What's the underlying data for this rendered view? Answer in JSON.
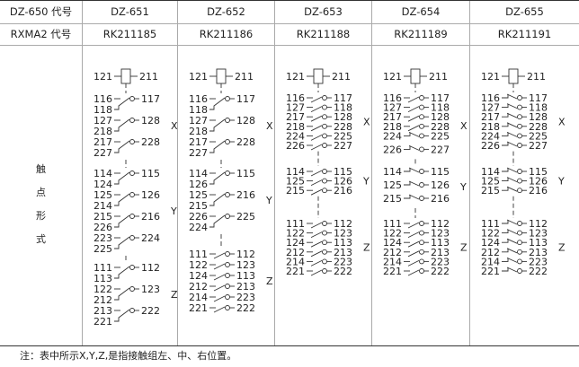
{
  "header": {
    "row1_label": "DZ-650 代号",
    "row2_label": "RXMA2 代号",
    "contact_form_label": [
      "触",
      "点",
      "形",
      "式"
    ]
  },
  "columns": [
    {
      "model": "DZ-651",
      "code": "RK211185",
      "coil": {
        "left": "121",
        "right": "211"
      },
      "groups": [
        {
          "label": "X",
          "contacts": [
            {
              "type": "changeover",
              "left": "116",
              "right": "117",
              "left2": "118"
            },
            {
              "type": "changeover",
              "left": "127",
              "right": "128",
              "left2": "218"
            },
            {
              "type": "changeover",
              "left": "217",
              "right": "228",
              "left2": "227"
            }
          ]
        },
        {
          "label": "Y",
          "contacts": [
            {
              "type": "changeover",
              "left": "114",
              "right": "115",
              "left2": "124"
            },
            {
              "type": "changeover",
              "left": "125",
              "right": "126",
              "left2": "214"
            },
            {
              "type": "changeover",
              "left": "215",
              "right": "216",
              "left2": "226"
            },
            {
              "type": "changeover",
              "left": "223",
              "right": "224",
              "left2": "225"
            }
          ]
        },
        {
          "label": "Z",
          "contacts": [
            {
              "type": "changeover",
              "left": "111",
              "right": "112",
              "left2": "113"
            },
            {
              "type": "changeover",
              "left": "122",
              "right": "123",
              "left2": "212"
            },
            {
              "type": "changeover",
              "left": "213",
              "right": "222",
              "left2": "221"
            }
          ]
        }
      ]
    },
    {
      "model": "DZ-652",
      "code": "RK211186",
      "coil": {
        "left": "121",
        "right": "211"
      },
      "groups": [
        {
          "label": "X",
          "contacts": [
            {
              "type": "changeover",
              "left": "116",
              "right": "117",
              "left2": "118"
            },
            {
              "type": "changeover",
              "left": "127",
              "right": "128",
              "left2": "218"
            },
            {
              "type": "changeover",
              "left": "217",
              "right": "228",
              "left2": "227"
            }
          ]
        },
        {
          "label": "Y",
          "contacts": [
            {
              "type": "changeover",
              "left": "114",
              "right": "115",
              "left2": "126"
            },
            {
              "type": "changeover",
              "left": "125",
              "right": "216",
              "left2": "215"
            },
            {
              "type": "changeover",
              "left": "226",
              "right": "225",
              "left2": "224"
            }
          ]
        },
        {
          "label": "Z",
          "contacts": [
            {
              "type": "make",
              "left": "111",
              "right": "112"
            },
            {
              "type": "make",
              "left": "122",
              "right": "123"
            },
            {
              "type": "make",
              "left": "124",
              "right": "113"
            },
            {
              "type": "make",
              "left": "212",
              "right": "213"
            },
            {
              "type": "make",
              "left": "214",
              "right": "223"
            },
            {
              "type": "make",
              "left": "221",
              "right": "222"
            }
          ]
        }
      ]
    },
    {
      "model": "DZ-653",
      "code": "RK211188",
      "coil": {
        "left": "121",
        "right": "211"
      },
      "groups": [
        {
          "label": "X",
          "contacts": [
            {
              "type": "make",
              "left": "116",
              "right": "117"
            },
            {
              "type": "make",
              "left": "127",
              "right": "118"
            },
            {
              "type": "make",
              "left": "217",
              "right": "128"
            },
            {
              "type": "make",
              "left": "218",
              "right": "228"
            },
            {
              "type": "make",
              "left": "224",
              "right": "225"
            },
            {
              "type": "make",
              "left": "226",
              "right": "227"
            }
          ]
        },
        {
          "label": "Y",
          "contacts": [
            {
              "type": "make",
              "left": "114",
              "right": "115"
            },
            {
              "type": "make",
              "left": "125",
              "right": "126"
            },
            {
              "type": "make",
              "left": "215",
              "right": "216"
            }
          ]
        },
        {
          "label": "Z",
          "contacts": [
            {
              "type": "make",
              "left": "111",
              "right": "112"
            },
            {
              "type": "make",
              "left": "122",
              "right": "123"
            },
            {
              "type": "make",
              "left": "124",
              "right": "113"
            },
            {
              "type": "make",
              "left": "212",
              "right": "213"
            },
            {
              "type": "make",
              "left": "214",
              "right": "223"
            },
            {
              "type": "make",
              "left": "221",
              "right": "222"
            }
          ]
        }
      ]
    },
    {
      "model": "DZ-654",
      "code": "RK211189",
      "coil": {
        "left": "121",
        "right": "211"
      },
      "groups": [
        {
          "label": "X",
          "contacts": [
            {
              "type": "make",
              "left": "116",
              "right": "117"
            },
            {
              "type": "make",
              "left": "127",
              "right": "118"
            },
            {
              "type": "make",
              "left": "217",
              "right": "128"
            },
            {
              "type": "make",
              "left": "218",
              "right": "228"
            },
            {
              "type": "break",
              "left": "224",
              "right": "225"
            },
            {
              "type": "break",
              "left": "226",
              "right": "227"
            }
          ]
        },
        {
          "label": "Y",
          "contacts": [
            {
              "type": "break",
              "left": "114",
              "right": "115"
            },
            {
              "type": "break",
              "left": "125",
              "right": "126"
            },
            {
              "type": "break",
              "left": "215",
              "right": "216"
            }
          ]
        },
        {
          "label": "Z",
          "contacts": [
            {
              "type": "make",
              "left": "111",
              "right": "112"
            },
            {
              "type": "make",
              "left": "122",
              "right": "123"
            },
            {
              "type": "make",
              "left": "124",
              "right": "113"
            },
            {
              "type": "make",
              "left": "212",
              "right": "213"
            },
            {
              "type": "make",
              "left": "214",
              "right": "223"
            },
            {
              "type": "make",
              "left": "221",
              "right": "222"
            }
          ]
        }
      ]
    },
    {
      "model": "DZ-655",
      "code": "RK211191",
      "coil": {
        "left": "121",
        "right": "211"
      },
      "groups": [
        {
          "label": "X",
          "contacts": [
            {
              "type": "break",
              "left": "116",
              "right": "117"
            },
            {
              "type": "break",
              "left": "127",
              "right": "118"
            },
            {
              "type": "break",
              "left": "217",
              "right": "128"
            },
            {
              "type": "break",
              "left": "218",
              "right": "228"
            },
            {
              "type": "break",
              "left": "224",
              "right": "225"
            },
            {
              "type": "break",
              "left": "226",
              "right": "227"
            }
          ]
        },
        {
          "label": "Y",
          "contacts": [
            {
              "type": "break",
              "left": "114",
              "right": "115"
            },
            {
              "type": "break",
              "left": "125",
              "right": "126"
            },
            {
              "type": "break",
              "left": "215",
              "right": "216"
            }
          ]
        },
        {
          "label": "Z",
          "contacts": [
            {
              "type": "break",
              "left": "111",
              "right": "112"
            },
            {
              "type": "break",
              "left": "122",
              "right": "123"
            },
            {
              "type": "break",
              "left": "124",
              "right": "113"
            },
            {
              "type": "break",
              "left": "212",
              "right": "213"
            },
            {
              "type": "break",
              "left": "214",
              "right": "223"
            },
            {
              "type": "break",
              "left": "221",
              "right": "222"
            }
          ]
        }
      ]
    }
  ],
  "footnote": "注：表中所示X,Y,Z,是指接触组左、中、右位置。"
}
